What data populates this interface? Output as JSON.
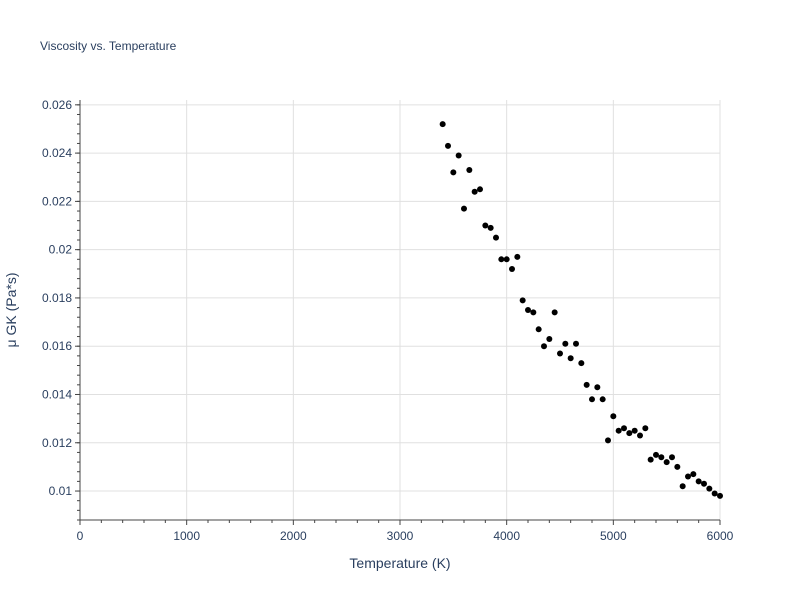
{
  "chart_data": {
    "type": "scatter",
    "title": "Viscosity vs. Temperature",
    "xlabel": "Temperature (K)",
    "ylabel": "μ GK (Pa*s)",
    "xlim": [
      0,
      6000
    ],
    "ylim": [
      0.0088,
      0.0262
    ],
    "xticks": [
      0,
      1000,
      2000,
      3000,
      4000,
      5000,
      6000
    ],
    "xtick_labels": [
      "0",
      "1000",
      "2000",
      "3000",
      "4000",
      "5000",
      "6000"
    ],
    "yticks": [
      0.01,
      0.012,
      0.014,
      0.016,
      0.018,
      0.02,
      0.022,
      0.024,
      0.026
    ],
    "ytick_labels": [
      "0.01",
      "0.012",
      "0.014",
      "0.016",
      "0.018",
      "0.02",
      "0.022",
      "0.024",
      "0.026"
    ],
    "grid": true,
    "marker_color": "#000000",
    "series": [
      {
        "points": [
          [
            3400,
            0.0252
          ],
          [
            3450,
            0.0243
          ],
          [
            3500,
            0.0232
          ],
          [
            3550,
            0.0239
          ],
          [
            3600,
            0.0217
          ],
          [
            3650,
            0.0233
          ],
          [
            3700,
            0.0224
          ],
          [
            3750,
            0.0225
          ],
          [
            3800,
            0.021
          ],
          [
            3850,
            0.0209
          ],
          [
            3900,
            0.0205
          ],
          [
            3950,
            0.0196
          ],
          [
            4000,
            0.0196
          ],
          [
            4050,
            0.0192
          ],
          [
            4100,
            0.0197
          ],
          [
            4150,
            0.0179
          ],
          [
            4200,
            0.0175
          ],
          [
            4250,
            0.0174
          ],
          [
            4300,
            0.0167
          ],
          [
            4350,
            0.016
          ],
          [
            4400,
            0.0163
          ],
          [
            4450,
            0.0174
          ],
          [
            4500,
            0.0157
          ],
          [
            4550,
            0.0161
          ],
          [
            4600,
            0.0155
          ],
          [
            4650,
            0.0161
          ],
          [
            4700,
            0.0153
          ],
          [
            4750,
            0.0144
          ],
          [
            4800,
            0.0138
          ],
          [
            4850,
            0.0143
          ],
          [
            4900,
            0.0138
          ],
          [
            4950,
            0.0121
          ],
          [
            5000,
            0.0131
          ],
          [
            5050,
            0.0125
          ],
          [
            5100,
            0.0126
          ],
          [
            5150,
            0.0124
          ],
          [
            5200,
            0.0125
          ],
          [
            5250,
            0.0123
          ],
          [
            5300,
            0.0126
          ],
          [
            5350,
            0.0113
          ],
          [
            5400,
            0.0115
          ],
          [
            5450,
            0.0114
          ],
          [
            5500,
            0.0112
          ],
          [
            5550,
            0.0114
          ],
          [
            5600,
            0.011
          ],
          [
            5650,
            0.0102
          ],
          [
            5700,
            0.0106
          ],
          [
            5750,
            0.0107
          ],
          [
            5800,
            0.0104
          ],
          [
            5850,
            0.0103
          ],
          [
            5900,
            0.0101
          ],
          [
            5950,
            0.0099
          ],
          [
            6000,
            0.0098
          ]
        ]
      }
    ]
  }
}
